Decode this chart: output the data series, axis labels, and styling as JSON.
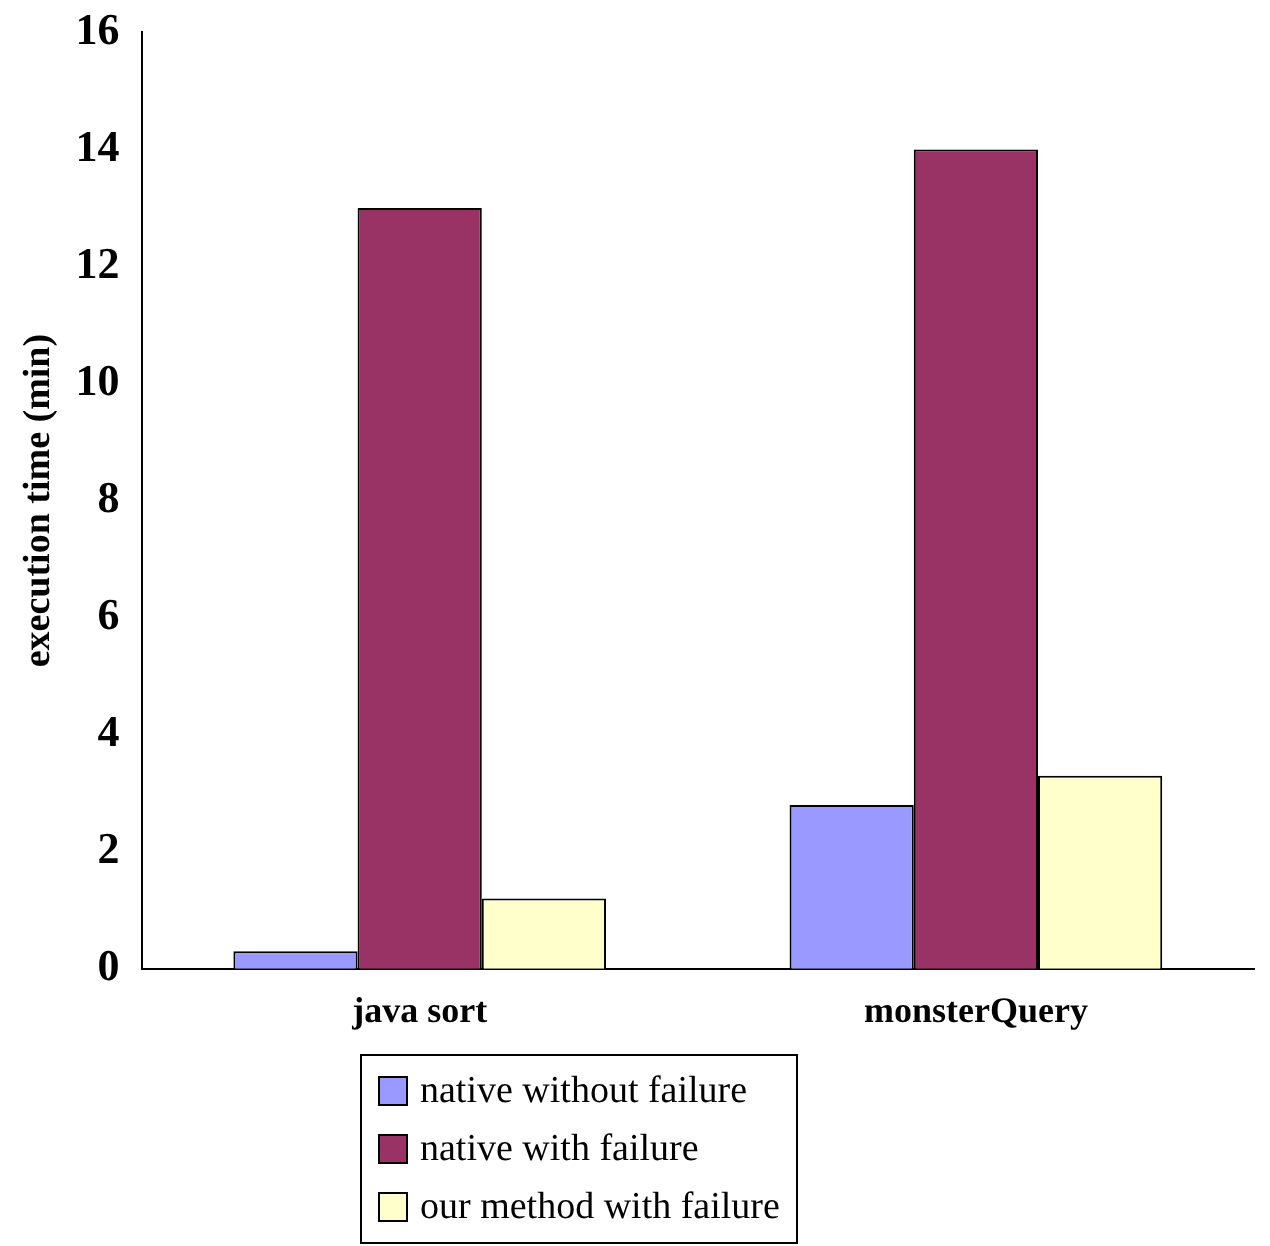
{
  "chart_data": {
    "type": "bar",
    "ylabel": "execution time (min)",
    "categories": [
      "java sort",
      "monsterQuery"
    ],
    "series": [
      {
        "name": "native without failure",
        "color": "#9999ff",
        "values": [
          0.3,
          2.8
        ]
      },
      {
        "name": "native with failure",
        "color": "#993366",
        "values": [
          13,
          14
        ]
      },
      {
        "name": "our method with failure",
        "color": "#ffffcc",
        "values": [
          1.2,
          3.3
        ]
      }
    ],
    "ylim": [
      0,
      16
    ],
    "yticks": [
      0,
      2,
      4,
      6,
      8,
      10,
      12,
      14,
      16
    ],
    "grid": false,
    "legend": "bottom"
  }
}
